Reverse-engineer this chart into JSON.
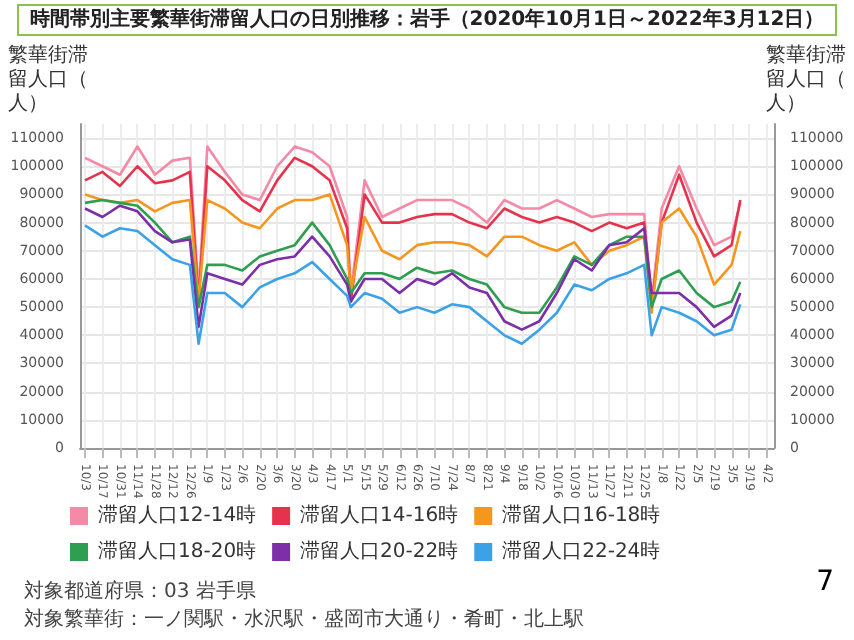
{
  "chart_data": {
    "type": "line",
    "title": "時間帯別主要繁華街滞留人口の日別推移：岩手（2020年10月1日～2022年3月12日）",
    "ylabel": "繁華街滞留人口（人）",
    "y2label": "繁華街滞留人口（人）",
    "annotations": [
      "対象都道府県：03 岩手県",
      "対象繁華街：一ノ関駅・水沢駅・盛岡市大通り・肴町・北上駅",
      "7"
    ],
    "x": [
      "2020-10-03",
      "2020-10-17",
      "2020-10-31",
      "2020-11-14",
      "2020-11-28",
      "2020-12-12",
      "2020-12-26",
      "2021-01-02",
      "2021-01-09",
      "2021-01-23",
      "2021-02-06",
      "2021-02-20",
      "2021-03-06",
      "2021-03-20",
      "2021-04-03",
      "2021-04-17",
      "2021-05-01",
      "2021-05-04",
      "2021-05-15",
      "2021-05-29",
      "2021-06-12",
      "2021-06-26",
      "2021-07-10",
      "2021-07-24",
      "2021-08-07",
      "2021-08-21",
      "2021-09-04",
      "2021-09-18",
      "2021-10-02",
      "2021-10-16",
      "2021-10-30",
      "2021-11-13",
      "2021-11-27",
      "2021-12-11",
      "2021-12-25",
      "2021-12-31",
      "2022-01-08",
      "2022-01-22",
      "2022-02-05",
      "2022-02-19",
      "2022-03-05",
      "2022-03-12"
    ],
    "series": [
      {
        "name": "滞留人口12-14時",
        "color": "#f48aa6",
        "values": [
          103000,
          100000,
          97000,
          107000,
          97000,
          102000,
          103000,
          55000,
          107000,
          98000,
          90000,
          88000,
          100000,
          107000,
          105000,
          100000,
          82000,
          55000,
          95000,
          82000,
          85000,
          88000,
          88000,
          88000,
          85000,
          80000,
          88000,
          85000,
          85000,
          88000,
          85000,
          82000,
          83000,
          83000,
          83000,
          52000,
          85000,
          100000,
          85000,
          72000,
          75000,
          87000
        ]
      },
      {
        "name": "滞留人口14-16時",
        "color": "#e6334d",
        "values": [
          95000,
          98000,
          93000,
          100000,
          94000,
          95000,
          98000,
          52000,
          100000,
          95000,
          88000,
          84000,
          95000,
          103000,
          100000,
          95000,
          78000,
          52000,
          90000,
          80000,
          80000,
          82000,
          83000,
          83000,
          80000,
          78000,
          85000,
          82000,
          80000,
          82000,
          80000,
          77000,
          80000,
          78000,
          80000,
          50000,
          80000,
          97000,
          80000,
          68000,
          72000,
          88000
        ]
      },
      {
        "name": "滞留人口16-18時",
        "color": "#f5961e",
        "values": [
          90000,
          88000,
          87000,
          88000,
          84000,
          87000,
          88000,
          52000,
          88000,
          85000,
          80000,
          78000,
          85000,
          88000,
          88000,
          90000,
          72000,
          55000,
          82000,
          70000,
          67000,
          72000,
          73000,
          73000,
          72000,
          68000,
          75000,
          75000,
          72000,
          70000,
          73000,
          65000,
          70000,
          72000,
          75000,
          48000,
          80000,
          85000,
          75000,
          58000,
          65000,
          77000
        ]
      },
      {
        "name": "滞留人口18-20時",
        "color": "#2e9e50",
        "values": [
          87000,
          88000,
          87000,
          86000,
          80000,
          73000,
          75000,
          50000,
          65000,
          65000,
          63000,
          68000,
          70000,
          72000,
          80000,
          72000,
          60000,
          55000,
          62000,
          62000,
          60000,
          64000,
          62000,
          63000,
          60000,
          58000,
          50000,
          48000,
          48000,
          57000,
          68000,
          65000,
          72000,
          75000,
          75000,
          50000,
          60000,
          63000,
          55000,
          50000,
          52000,
          59000
        ]
      },
      {
        "name": "滞留人口20-22時",
        "color": "#7d2fa8",
        "values": [
          85000,
          82000,
          86000,
          84000,
          77000,
          73000,
          74000,
          43000,
          62000,
          60000,
          58000,
          65000,
          67000,
          68000,
          75000,
          68000,
          58000,
          52000,
          60000,
          60000,
          55000,
          60000,
          58000,
          62000,
          57000,
          55000,
          45000,
          42000,
          45000,
          55000,
          67000,
          63000,
          72000,
          73000,
          78000,
          55000,
          55000,
          55000,
          50000,
          43000,
          47000,
          55000
        ]
      },
      {
        "name": "滞留人口22-24時",
        "color": "#3ba2e8",
        "values": [
          79000,
          75000,
          78000,
          77000,
          72000,
          67000,
          65000,
          37000,
          55000,
          55000,
          50000,
          57000,
          60000,
          62000,
          66000,
          60000,
          54000,
          50000,
          55000,
          53000,
          48000,
          50000,
          48000,
          51000,
          50000,
          45000,
          40000,
          37000,
          42000,
          48000,
          58000,
          56000,
          60000,
          62000,
          65000,
          40000,
          50000,
          48000,
          45000,
          40000,
          42000,
          51000
        ]
      }
    ],
    "xlim": [
      "2020-09-29",
      "2022-04-08"
    ],
    "xticks": [
      {
        "value": "2020-10-03",
        "label": "10/3"
      },
      {
        "value": "2020-10-17",
        "label": "10/17"
      },
      {
        "value": "2020-10-31",
        "label": "10/31"
      },
      {
        "value": "2020-11-14",
        "label": "11/14"
      },
      {
        "value": "2020-11-28",
        "label": "11/28"
      },
      {
        "value": "2020-12-12",
        "label": "12/12"
      },
      {
        "value": "2020-12-26",
        "label": "12/26"
      },
      {
        "value": "2021-01-09",
        "label": "1/9"
      },
      {
        "value": "2021-01-23",
        "label": "1/23"
      },
      {
        "value": "2021-02-06",
        "label": "2/6"
      },
      {
        "value": "2021-02-20",
        "label": "2/20"
      },
      {
        "value": "2021-03-06",
        "label": "3/6"
      },
      {
        "value": "2021-03-20",
        "label": "3/20"
      },
      {
        "value": "2021-04-03",
        "label": "4/3"
      },
      {
        "value": "2021-04-17",
        "label": "4/17"
      },
      {
        "value": "2021-05-01",
        "label": "5/1"
      },
      {
        "value": "2021-05-15",
        "label": "5/15"
      },
      {
        "value": "2021-05-29",
        "label": "5/29"
      },
      {
        "value": "2021-06-12",
        "label": "6/12"
      },
      {
        "value": "2021-06-26",
        "label": "6/26"
      },
      {
        "value": "2021-07-10",
        "label": "7/10"
      },
      {
        "value": "2021-07-24",
        "label": "7/24"
      },
      {
        "value": "2021-08-07",
        "label": "8/7"
      },
      {
        "value": "2021-08-21",
        "label": "8/21"
      },
      {
        "value": "2021-09-04",
        "label": "9/4"
      },
      {
        "value": "2021-09-18",
        "label": "9/18"
      },
      {
        "value": "2021-10-02",
        "label": "10/2"
      },
      {
        "value": "2021-10-16",
        "label": "10/16"
      },
      {
        "value": "2021-10-30",
        "label": "10/30"
      },
      {
        "value": "2021-11-13",
        "label": "11/13"
      },
      {
        "value": "2021-11-27",
        "label": "11/27"
      },
      {
        "value": "2021-12-11",
        "label": "12/11"
      },
      {
        "value": "2021-12-25",
        "label": "12/25"
      },
      {
        "value": "2022-01-08",
        "label": "1/8"
      },
      {
        "value": "2022-01-22",
        "label": "1/22"
      },
      {
        "value": "2022-02-05",
        "label": "2/5"
      },
      {
        "value": "2022-02-19",
        "label": "2/19"
      },
      {
        "value": "2022-03-05",
        "label": "3/5"
      },
      {
        "value": "2022-03-19",
        "label": "3/19"
      },
      {
        "value": "2022-04-02",
        "label": "4/2"
      }
    ],
    "ylim": [
      0,
      115000
    ],
    "yticks": [
      0,
      10000,
      20000,
      30000,
      40000,
      50000,
      60000,
      70000,
      80000,
      90000,
      100000,
      110000
    ],
    "y2lim": [
      0,
      115000
    ],
    "y2ticks": [
      0,
      10000,
      20000,
      30000,
      40000,
      50000,
      60000,
      70000,
      80000,
      90000,
      100000,
      110000
    ],
    "grid": true,
    "legend": "bottom",
    "marker": "none",
    "line_style": "solid"
  }
}
